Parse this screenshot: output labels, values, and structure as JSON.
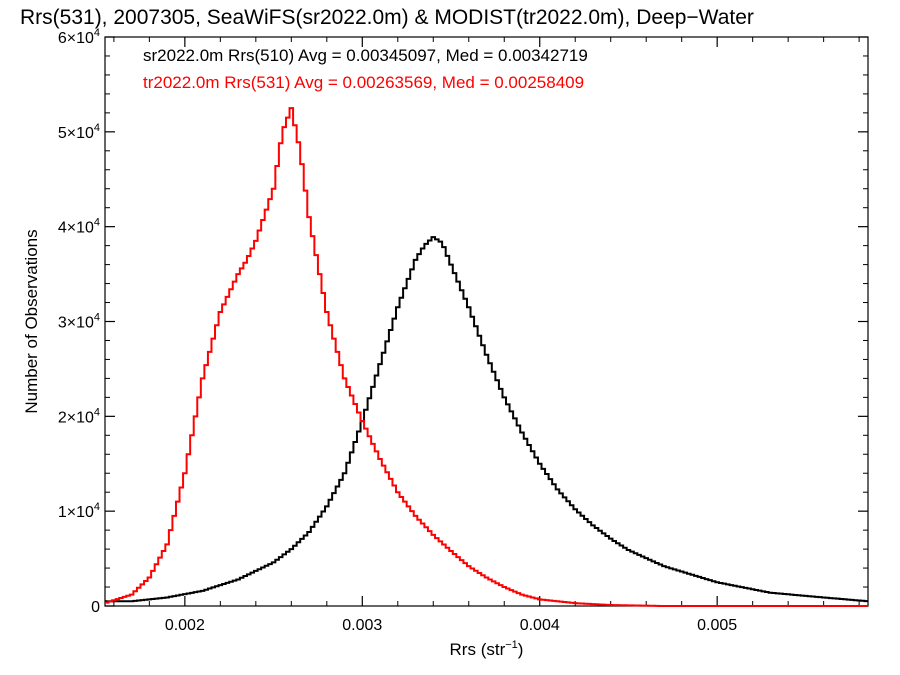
{
  "chart_data": {
    "type": "line",
    "title": "Rrs(531), 2007305, SeaWiFS(sr2022.0m) & MODIST(tr2022.0m), Deep−Water",
    "xlabel": "Rrs (str",
    "xlabel_sup": "−1",
    "xlabel_close": ")",
    "ylabel": "Number of Observations",
    "xlim": [
      0.00155,
      0.00585
    ],
    "ylim": [
      0,
      60000
    ],
    "grid": false,
    "x_ticks": [
      {
        "value": 0.002,
        "label": "0.002"
      },
      {
        "value": 0.003,
        "label": "0.003"
      },
      {
        "value": 0.004,
        "label": "0.004"
      },
      {
        "value": 0.005,
        "label": "0.005"
      }
    ],
    "y_ticks": [
      {
        "value": 0,
        "label": "0"
      },
      {
        "value": 10000,
        "label": "1×10",
        "sup": "4"
      },
      {
        "value": 20000,
        "label": "2×10",
        "sup": "4"
      },
      {
        "value": 30000,
        "label": "3×10",
        "sup": "4"
      },
      {
        "value": 40000,
        "label": "4×10",
        "sup": "4"
      },
      {
        "value": 50000,
        "label": "5×10",
        "sup": "4"
      },
      {
        "value": 60000,
        "label": "6×10",
        "sup": "4"
      }
    ],
    "legend_placement": "top-left",
    "series": [
      {
        "legend": "sr2022.0m Rrs(510) Avg = 0.00345097, Med = 0.00342719",
        "color": "#000000",
        "style": "step",
        "x": [
          0.00155,
          0.0017,
          0.0019,
          0.0021,
          0.0023,
          0.0025,
          0.0026,
          0.0027,
          0.0028,
          0.0029,
          0.003,
          0.0031,
          0.0032,
          0.0033,
          0.00335,
          0.0034,
          0.00345,
          0.0035,
          0.0036,
          0.0037,
          0.0038,
          0.0039,
          0.004,
          0.0041,
          0.0042,
          0.0043,
          0.0044,
          0.0045,
          0.0047,
          0.005,
          0.0053,
          0.0056,
          0.00585
        ],
        "y": [
          500,
          500,
          900,
          1600,
          2800,
          4600,
          6000,
          7800,
          10500,
          14000,
          19500,
          25500,
          31500,
          36500,
          38000,
          38900,
          38300,
          36000,
          31500,
          26500,
          22000,
          18300,
          15000,
          12300,
          10200,
          8500,
          7100,
          5900,
          4200,
          2500,
          1400,
          900,
          500
        ]
      },
      {
        "legend": "tr2022.0m Rrs(531) Avg = 0.00263569, Med = 0.00258409",
        "color": "#ff0000",
        "style": "step",
        "x": [
          0.00155,
          0.0017,
          0.0018,
          0.0019,
          0.002,
          0.0021,
          0.0022,
          0.0023,
          0.00235,
          0.0024,
          0.0025,
          0.00255,
          0.0026,
          0.00265,
          0.0027,
          0.0028,
          0.0029,
          0.003,
          0.0031,
          0.0032,
          0.0033,
          0.0034,
          0.0035,
          0.0036,
          0.0037,
          0.0038,
          0.0039,
          0.004,
          0.0042,
          0.0044,
          0.0047,
          0.005,
          0.00585
        ],
        "y": [
          300,
          1200,
          3000,
          6500,
          14000,
          24000,
          31000,
          35000,
          36500,
          38500,
          44000,
          50000,
          52500,
          48000,
          41000,
          31000,
          24000,
          19500,
          15500,
          12000,
          9500,
          7500,
          5800,
          4200,
          3000,
          2000,
          1200,
          700,
          300,
          100,
          0,
          0,
          0
        ]
      }
    ]
  }
}
